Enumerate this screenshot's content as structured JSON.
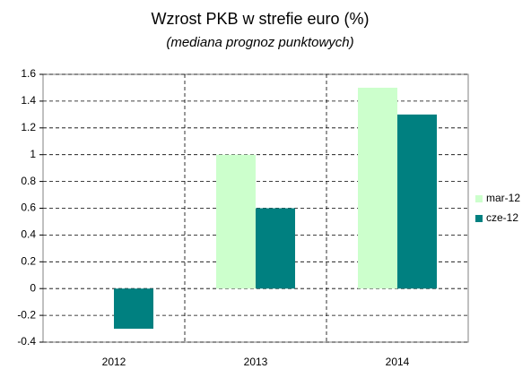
{
  "chart_data": {
    "type": "bar",
    "title": "Wzrost PKB w strefie euro (%)",
    "subtitle": "(mediana prognoz punktowych)",
    "categories": [
      "2012",
      "2013",
      "2014"
    ],
    "series": [
      {
        "name": "mar-12",
        "color": "#ccffcc",
        "values": [
          0,
          1.0,
          1.5
        ]
      },
      {
        "name": "cze-12",
        "color": "#008080",
        "values": [
          -0.3,
          0.6,
          1.3
        ]
      }
    ],
    "ylim": [
      -0.4,
      1.6
    ],
    "yticks": [
      -0.4,
      -0.2,
      0,
      0.2,
      0.4,
      0.6,
      0.8,
      1,
      1.2,
      1.4,
      1.6
    ],
    "grid": true,
    "legend": "right"
  }
}
